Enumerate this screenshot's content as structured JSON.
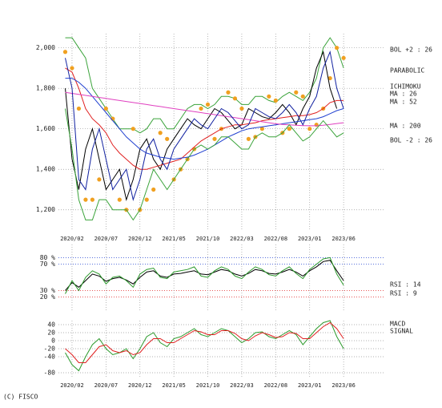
{
  "copyright": "(C) FISCO",
  "chart_data": [
    {
      "type": "line",
      "x": [
        0,
        1,
        2,
        3,
        4,
        5,
        6,
        7,
        8,
        9,
        10,
        11,
        12,
        13,
        14,
        15,
        16,
        17,
        18,
        19,
        20,
        21,
        22,
        23,
        24,
        25,
        26,
        27,
        28,
        29,
        30,
        31,
        32,
        33,
        34,
        35,
        36,
        37,
        38,
        39,
        40,
        41
      ],
      "xlim": [
        -1,
        47
      ],
      "xticks": [
        {
          "value": 1,
          "label": "2020/02"
        },
        {
          "value": 6,
          "label": "2020/07"
        },
        {
          "value": 11,
          "label": "2020/12"
        },
        {
          "value": 16,
          "label": "2021/05"
        },
        {
          "value": 21,
          "label": "2021/10"
        },
        {
          "value": 26,
          "label": "2022/03"
        },
        {
          "value": 31,
          "label": "2022/08"
        },
        {
          "value": 36,
          "label": "2023/01"
        },
        {
          "value": 41,
          "label": "2023/06"
        }
      ],
      "ylim": [
        1100,
        2070
      ],
      "yticks": [
        {
          "value": 1200,
          "label": "1,200"
        },
        {
          "value": 1400,
          "label": "1,400"
        },
        {
          "value": 1600,
          "label": "1,600"
        },
        {
          "value": 1800,
          "label": "1,800"
        },
        {
          "value": 2000,
          "label": "2,000"
        }
      ],
      "grid": true,
      "series": [
        {
          "name": "BOL +2 : 26",
          "color": "#3aa33a",
          "values": [
            2050,
            2050,
            2000,
            1950,
            1800,
            1750,
            1700,
            1650,
            1600,
            1600,
            1600,
            1580,
            1600,
            1650,
            1650,
            1600,
            1600,
            1650,
            1700,
            1720,
            1720,
            1700,
            1720,
            1760,
            1760,
            1750,
            1720,
            1720,
            1760,
            1760,
            1740,
            1730,
            1760,
            1780,
            1760,
            1740,
            1780,
            1850,
            2000,
            2050,
            2000,
            1900
          ]
        },
        {
          "name": "PARABOLIC",
          "color": "#f0a020",
          "marker": "dot",
          "values": [
            1980,
            1900,
            1700,
            1250,
            1250,
            1350,
            1700,
            1650,
            1250,
            1200,
            1600,
            1200,
            1250,
            1300,
            1580,
            1550,
            1350,
            1400,
            1450,
            1500,
            1700,
            1720,
            1550,
            1600,
            1780,
            1750,
            1700,
            1550,
            1560,
            1600,
            1760,
            1740,
            1580,
            1600,
            1780,
            1760,
            1600,
            1620,
            1700,
            1850,
            2000,
            1950
          ]
        },
        {
          "name": "ICHIMOKU",
          "color": "#000000",
          "values": [
            1800,
            1450,
            1300,
            1500,
            1600,
            1450,
            1300,
            1350,
            1400,
            1250,
            1350,
            1500,
            1550,
            1450,
            1400,
            1500,
            1550,
            1600,
            1650,
            1620,
            1600,
            1650,
            1700,
            1680,
            1640,
            1600,
            1620,
            1700,
            1680,
            1660,
            1650,
            1680,
            1720,
            1680,
            1620,
            1700,
            1760,
            1900,
            1980,
            1800,
            1700,
            null
          ]
        },
        {
          "name": "MA : 26",
          "color": "#e02020",
          "values": [
            1900,
            1880,
            1800,
            1700,
            1650,
            1620,
            1580,
            1520,
            1480,
            1450,
            1420,
            1400,
            1400,
            1410,
            1420,
            1430,
            1440,
            1450,
            1480,
            1510,
            1540,
            1560,
            1580,
            1600,
            1610,
            1620,
            1620,
            1625,
            1630,
            1640,
            1645,
            1650,
            1655,
            1660,
            1665,
            1665,
            1670,
            1680,
            1700,
            1730,
            1740,
            1740
          ]
        },
        {
          "name": "MA : 52",
          "color": "#2040d0",
          "values": [
            1850,
            1850,
            1830,
            1800,
            1760,
            1720,
            1680,
            1640,
            1600,
            1560,
            1530,
            1500,
            1480,
            1470,
            1460,
            1455,
            1450,
            1455,
            1460,
            1470,
            1485,
            1500,
            1520,
            1540,
            1560,
            1575,
            1590,
            1600,
            1605,
            1610,
            1615,
            1620,
            1625,
            1630,
            1635,
            1640,
            1645,
            1650,
            1660,
            1675,
            1690,
            1700
          ]
        },
        {
          "name": "MA : 200",
          "color": "#e040c0",
          "values": [
            1780,
            1775,
            1770,
            1765,
            1760,
            1755,
            1750,
            1745,
            1740,
            1735,
            1730,
            1725,
            1720,
            1715,
            1710,
            1705,
            1700,
            1695,
            1690,
            1685,
            1680,
            1675,
            1670,
            1665,
            1660,
            1655,
            1650,
            1645,
            1640,
            1635,
            1630,
            1625,
            1622,
            1620,
            1618,
            1616,
            1615,
            1615,
            1618,
            1622,
            1626,
            1630
          ]
        },
        {
          "name": "BOL -2 : 26",
          "color": "#3aa33a",
          "values": [
            1700,
            1500,
            1250,
            1150,
            1150,
            1250,
            1250,
            1200,
            1200,
            1200,
            1150,
            1200,
            1300,
            1400,
            1350,
            1300,
            1350,
            1400,
            1450,
            1500,
            1520,
            1500,
            1520,
            1560,
            1560,
            1530,
            1500,
            1500,
            1560,
            1580,
            1560,
            1560,
            1580,
            1620,
            1580,
            1540,
            1560,
            1600,
            1640,
            1600,
            1560,
            1580
          ]
        },
        {
          "name": "",
          "color": "#1020a0",
          "values": [
            1950,
            1800,
            1350,
            1300,
            1500,
            1600,
            1450,
            1300,
            1350,
            1400,
            1250,
            1350,
            1500,
            1550,
            1450,
            1400,
            1500,
            1550,
            1600,
            1650,
            1620,
            1600,
            1650,
            1700,
            1680,
            1640,
            1600,
            1620,
            1700,
            1680,
            1660,
            1650,
            1680,
            1720,
            1680,
            1620,
            1700,
            1760,
            1900,
            1980,
            1800,
            1700
          ]
        }
      ]
    },
    {
      "type": "line",
      "ylim": [
        0,
        100
      ],
      "yticks": [
        {
          "value": 20,
          "label": "20 %"
        },
        {
          "value": 30,
          "label": "30 %"
        },
        {
          "value": 70,
          "label": "70 %"
        },
        {
          "value": 80,
          "label": "80 %"
        }
      ],
      "series": [
        {
          "name": "RSI : 14",
          "color": "#000000",
          "values": [
            30,
            42,
            35,
            45,
            55,
            52,
            44,
            48,
            50,
            46,
            40,
            50,
            58,
            60,
            52,
            50,
            55,
            56,
            58,
            60,
            55,
            54,
            58,
            62,
            60,
            55,
            52,
            56,
            62,
            60,
            56,
            55,
            58,
            62,
            58,
            52,
            60,
            66,
            74,
            76,
            60,
            45
          ]
        },
        {
          "name": "RSI : 9",
          "color": "#2c9a2c",
          "values": [
            25,
            45,
            30,
            50,
            60,
            55,
            40,
            50,
            52,
            45,
            35,
            55,
            62,
            64,
            50,
            48,
            58,
            60,
            62,
            66,
            52,
            50,
            60,
            66,
            62,
            52,
            48,
            58,
            66,
            62,
            54,
            52,
            60,
            66,
            56,
            48,
            62,
            70,
            78,
            80,
            55,
            38
          ]
        }
      ]
    },
    {
      "type": "line",
      "ylim": [
        -90,
        50
      ],
      "yticks": [
        40,
        20,
        0,
        -20,
        -40,
        -80
      ],
      "series": [
        {
          "name": "MACD",
          "color": "#2c9a2c",
          "values": [
            -30,
            -60,
            -75,
            -40,
            -10,
            5,
            -20,
            -35,
            -30,
            -20,
            -45,
            -20,
            10,
            20,
            -5,
            -15,
            5,
            10,
            20,
            30,
            15,
            10,
            20,
            30,
            25,
            10,
            -5,
            5,
            20,
            22,
            10,
            5,
            15,
            25,
            15,
            -10,
            10,
            30,
            45,
            50,
            10,
            -20
          ]
        },
        {
          "name": "SIGNAL",
          "color": "#e02020",
          "values": [
            -20,
            -35,
            -55,
            -55,
            -35,
            -15,
            -10,
            -25,
            -30,
            -25,
            -35,
            -30,
            -10,
            5,
            5,
            -5,
            -5,
            5,
            15,
            25,
            22,
            15,
            15,
            25,
            25,
            18,
            5,
            0,
            12,
            20,
            15,
            8,
            10,
            20,
            18,
            5,
            5,
            20,
            35,
            45,
            30,
            5
          ]
        }
      ]
    }
  ]
}
